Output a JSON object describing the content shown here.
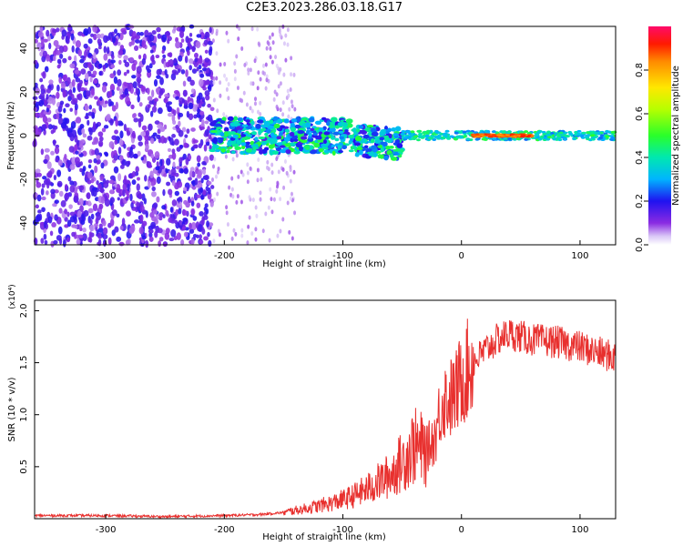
{
  "chart_data": [
    {
      "type": "heatmap",
      "title": "C2E3.2023.286.03.18.G17",
      "xlabel": "Height of straight line (km)",
      "ylabel": "Frequency (Hz)",
      "xlim": [
        -360,
        130
      ],
      "ylim": [
        -50,
        50
      ],
      "xticks": [
        -300,
        -200,
        -100,
        0,
        100
      ],
      "yticks": [
        -40,
        -20,
        0,
        20,
        40
      ],
      "colorbar": {
        "label": "Normalized spectral amplitude",
        "range": [
          0,
          1
        ],
        "ticks": [
          "0.0",
          "0.2",
          "0.4",
          "0.6",
          "0.8"
        ]
      },
      "regions": [
        {
          "x": [
            -360,
            -210
          ],
          "description_amplitude": 0.15
        },
        {
          "x": [
            -210,
            -50
          ],
          "center_freq": 0,
          "amplitude": 0.5
        },
        {
          "x": [
            -50,
            130
          ],
          "center_freq": 0,
          "amplitude": 0.85
        }
      ],
      "grid": false
    },
    {
      "type": "line",
      "xlabel": "Height of straight line (km)",
      "ylabel": "SNR (10 * v/v)",
      "y_multiplier": "(x10⁴)",
      "xlim": [
        -360,
        130
      ],
      "ylim": [
        0,
        2.1
      ],
      "xticks": [
        -300,
        -200,
        -100,
        0,
        100
      ],
      "yticks": [
        "0.5",
        "1.0",
        "1.5",
        "2.0"
      ],
      "series": [
        {
          "color": "#e8302e",
          "x": [
            -360,
            -300,
            -250,
            -200,
            -170,
            -150,
            -130,
            -110,
            -95,
            -80,
            -70,
            -60,
            -50,
            -40,
            -30,
            -22,
            -18,
            -15,
            -10,
            -5,
            0,
            10,
            20,
            30,
            40,
            50,
            60,
            80,
            100,
            120,
            130
          ],
          "y": [
            0.03,
            0.03,
            0.02,
            0.03,
            0.04,
            0.06,
            0.1,
            0.15,
            0.2,
            0.28,
            0.35,
            0.42,
            0.55,
            0.7,
            0.65,
            0.8,
            1.05,
            1.15,
            1.15,
            1.2,
            1.35,
            1.5,
            1.62,
            1.72,
            1.78,
            1.75,
            1.72,
            1.7,
            1.65,
            1.58,
            1.55
          ]
        }
      ],
      "grid": false
    }
  ]
}
